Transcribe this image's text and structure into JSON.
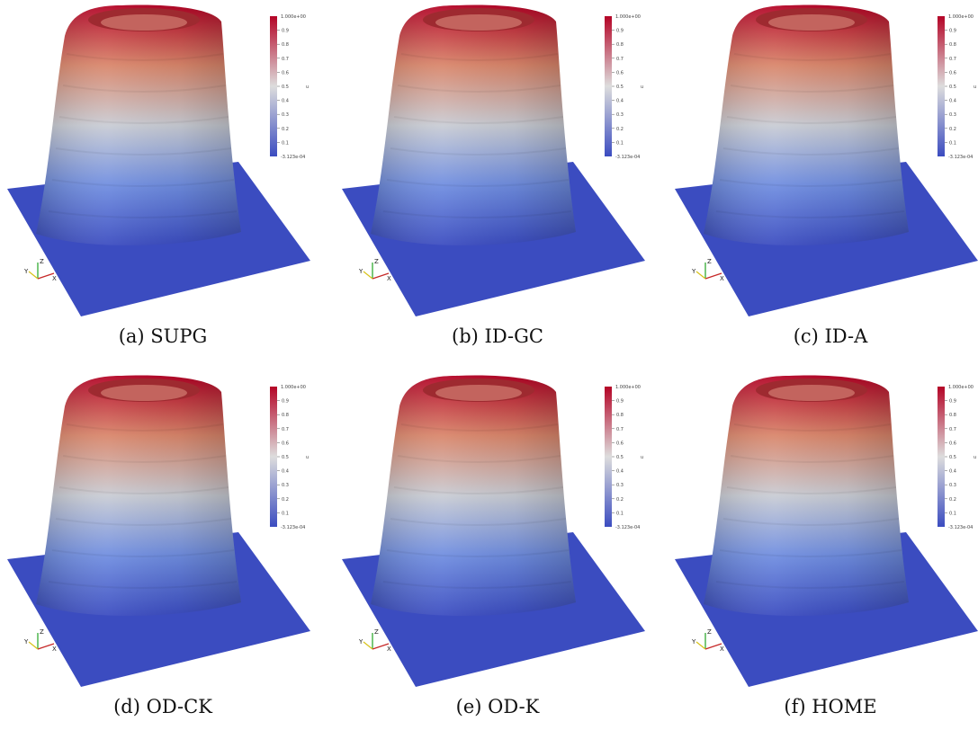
{
  "panels": [
    {
      "id": "a",
      "caption": "(a) SUPG"
    },
    {
      "id": "b",
      "caption": "(b) ID-GC"
    },
    {
      "id": "c",
      "caption": "(c) ID-A"
    },
    {
      "id": "d",
      "caption": "(d) OD-CK"
    },
    {
      "id": "e",
      "caption": "(e) OD-K"
    },
    {
      "id": "f",
      "caption": "(f) HOME"
    }
  ],
  "colorbar": {
    "max_label": "1.000e+00",
    "min_label": "-3.123e-04",
    "ticks": [
      "0.9",
      "0.8",
      "0.7",
      "0.6",
      "0.5",
      "0.4",
      "0.3",
      "0.2",
      "0.1"
    ],
    "variable": "u",
    "colors": {
      "low": "#3b4cc0",
      "mid": "#dddddd",
      "high": "#b40426"
    }
  },
  "axes_glyph": {
    "x": "X",
    "y": "Y",
    "z": "Z"
  }
}
